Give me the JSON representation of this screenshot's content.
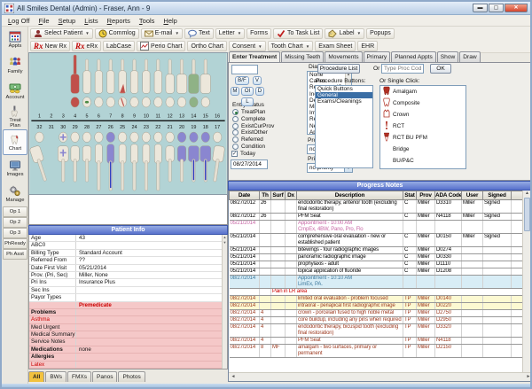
{
  "window": {
    "title": "All Smiles Dental (Admin) - Fraser, Ann - 9",
    "controls": [
      "minimize",
      "maximize",
      "close"
    ]
  },
  "menu": [
    "Log Off",
    "File",
    "Setup",
    "Lists",
    "Reports",
    "Tools",
    "Help"
  ],
  "toolbar_main": [
    {
      "label": "Select Patient",
      "icon": "patient",
      "dropdown": true
    },
    {
      "label": "Commlog",
      "icon": "clock"
    },
    {
      "label": "E-mail",
      "icon": "envelope",
      "dropdown": true
    },
    {
      "label": "Text",
      "icon": "bubble"
    },
    {
      "label": "Letter",
      "dropdown": true
    },
    {
      "label": "Forms"
    },
    {
      "label": "To Task List",
      "icon": "check"
    },
    {
      "label": "Label",
      "icon": "tag",
      "dropdown": true
    },
    {
      "label": "Popups"
    }
  ],
  "toolbar_chart": [
    {
      "label": "New Rx",
      "icon": "rx"
    },
    {
      "label": "eRx",
      "icon": "rx"
    },
    {
      "label": "LabCase"
    },
    {
      "label": "Perio Chart",
      "icon": "perio"
    },
    {
      "label": "Ortho Chart"
    },
    {
      "label": "Consent",
      "dropdown": true
    },
    {
      "label": "Tooth Chart",
      "dropdown": true
    },
    {
      "label": "Exam Sheet"
    },
    {
      "label": "EHR"
    }
  ],
  "sidebar": {
    "modules": [
      {
        "label": "Appts",
        "icon": "appts"
      },
      {
        "label": "Family",
        "icon": "family"
      },
      {
        "label": "Account",
        "icon": "account"
      },
      {
        "label": "Treat Plan",
        "icon": "treat"
      },
      {
        "label": "Chart",
        "icon": "chart",
        "selected": true
      },
      {
        "label": "Images",
        "icon": "images"
      },
      {
        "label": "Manage",
        "icon": "manage"
      }
    ],
    "operatories": [
      "Op 1",
      "Op 2",
      "Op 3",
      "PhReady",
      "Ph Asst"
    ]
  },
  "tooth_chart": {
    "upper_numbers": [
      "1",
      "2",
      "3",
      "4",
      "5",
      "6",
      "7",
      "8",
      "9",
      "10",
      "11",
      "12",
      "13",
      "14",
      "15",
      "16"
    ],
    "lower_numbers": [
      "32",
      "31",
      "30",
      "29",
      "28",
      "27",
      "26",
      "25",
      "24",
      "23",
      "22",
      "21",
      "20",
      "19",
      "18",
      "17"
    ],
    "upper_teeth": {
      "missing": [
        "1",
        "2",
        "3",
        "16"
      ],
      "red": [
        "4"
      ],
      "red_mark": [
        "8"
      ],
      "green": [
        "14"
      ],
      "green_mark": [
        "5"
      ]
    },
    "lower_teeth": {
      "missing": [
        "31"
      ],
      "purple_mark": [
        "30"
      ],
      "purple": [
        "26",
        "20",
        "19",
        "18"
      ],
      "rct": [
        "26",
        "19",
        "18"
      ]
    },
    "colors": {
      "background": "#b2d3d5",
      "tooth": "#ece7db",
      "red": "#c0504a",
      "green": "#8fb286",
      "purple": "#8a86d0",
      "rct_blue": "#2838c0"
    }
  },
  "chart_tabs": {
    "items": [
      "Enter Treatment",
      "Missing Teeth",
      "Movements",
      "Primary",
      "Planned Appts",
      "Show",
      "Draw"
    ],
    "active": "Enter Treatment"
  },
  "enter_treatment": {
    "surface_value": "",
    "surface_buttons": [
      "B/F",
      "V",
      "M",
      "OI",
      "D",
      "L"
    ],
    "entry_status": {
      "label": "Entry Status",
      "options": [
        "TreatPlan",
        "Complete",
        "ExistCurProv",
        "ExistOther",
        "Referred",
        "Condition"
      ],
      "selected": "TreatPlan"
    },
    "today": {
      "label": "Today",
      "checked": true,
      "date": "08/27/2014"
    },
    "diagnosis": {
      "label": "Diagnosis",
      "items": [
        "None",
        "Caries",
        "Recurrent (Car",
        "Incipient (Car",
        "Defect (or mis",
        "Missing (tooth",
        "Irrevers. Pulp.",
        "Revers. Pulp.",
        "Necrotic",
        "Apical Perio"
      ]
    },
    "prognosis": {
      "label": "Prognosis",
      "value": "no prognosis"
    },
    "priority": {
      "label": "Priority",
      "value": "no priority"
    },
    "procedure_list_button": "Procedure List",
    "procedure_buttons": {
      "label": "Procedure Buttons:",
      "items": [
        "Quick Buttons",
        "General",
        "Exams/Cleanings"
      ],
      "selected": "General"
    },
    "or_label": "Or",
    "proc_code_placeholder": "Type Proc Code",
    "ok_button": "OK",
    "single_click": {
      "label": "Or Single Click:",
      "items": [
        {
          "label": "Amalgam",
          "icon": "amalgam"
        },
        {
          "label": "Composite",
          "icon": "composite"
        },
        {
          "label": "Crown",
          "icon": "crown"
        },
        {
          "label": "RCT",
          "icon": "rct"
        },
        {
          "label": "RCT BU PFM",
          "icon": "rctbupfm"
        },
        {
          "label": "Bridge",
          "icon": ""
        },
        {
          "label": "BU/P&C",
          "icon": ""
        }
      ]
    }
  },
  "patient_info": {
    "title": "Patient Info",
    "rows": [
      [
        "Age",
        "43"
      ],
      [
        "ABC0",
        ""
      ],
      [
        "Billing Type",
        "Standard Account"
      ],
      [
        "Referred From",
        "??"
      ],
      [
        "Date First Visit",
        "05/21/2014"
      ],
      [
        "Prov. (Pri, Sec)",
        "Miller, None"
      ],
      [
        "Pri Ins",
        "Insurance Plus"
      ],
      [
        "Sec Ins",
        ""
      ],
      [
        "Payor Types",
        ""
      ]
    ],
    "alerts": [
      {
        "label": "",
        "value": "Premedicate",
        "style": "alert-strong"
      },
      {
        "label": "Problems",
        "value": "",
        "style": "bold"
      },
      {
        "label": "Asthma",
        "value": "",
        "style": "red"
      },
      {
        "label": "Med Urgent",
        "value": ""
      },
      {
        "label": "Medical Summary",
        "value": ""
      },
      {
        "label": "Service Notes",
        "value": ""
      },
      {
        "label": "Medications",
        "value": "none",
        "style": "bold"
      },
      {
        "label": "Allergies",
        "value": "",
        "style": "bold"
      },
      {
        "label": "Latex",
        "value": "",
        "style": "red"
      }
    ]
  },
  "image_tabs": {
    "items": [
      "All",
      "BWs",
      "FMXs",
      "Panos",
      "Photos"
    ],
    "active": "All"
  },
  "progress_notes": {
    "title": "Progress Notes",
    "columns": [
      "Date",
      "Th",
      "Surf",
      "Dx",
      "Description",
      "Stat",
      "Prov",
      "ADA Code",
      "User",
      "Signed"
    ],
    "rows": [
      {
        "date": "08/27/2012",
        "th": "26",
        "desc": "endodontic therapy, anterior tooth (excluding final restoration)",
        "stat": "C",
        "prov": "Miller",
        "ada": "D3310",
        "user": "Miller",
        "signed": "Signed",
        "type": "complete"
      },
      {
        "date": "08/27/2012",
        "th": "26",
        "desc": "PFM Seat",
        "stat": "C",
        "prov": "Miller",
        "ada": "N4118",
        "user": "Miller",
        "signed": "Signed",
        "type": "complete"
      },
      {
        "date": "05/21/2014",
        "desc": "Appointment - 10:00 AM\nCmpEx, 4BW, Pano, Pro, Flo",
        "type": "appt-past"
      },
      {
        "date": "05/21/2014",
        "desc": "comprehensive oral evaluation - new or established patient",
        "stat": "C",
        "prov": "Miller",
        "ada": "D0150",
        "user": "Miller",
        "signed": "Signed",
        "type": "complete"
      },
      {
        "date": "05/21/2014",
        "desc": "bitewings - four radiographic images",
        "stat": "C",
        "prov": "Miller",
        "ada": "D0274",
        "type": "complete"
      },
      {
        "date": "05/21/2014",
        "desc": "panoramic radiographic image",
        "stat": "C",
        "prov": "Miller",
        "ada": "D0330",
        "type": "complete"
      },
      {
        "date": "05/21/2014",
        "desc": "prophylaxis - adult",
        "stat": "C",
        "prov": "Miller",
        "ada": "D1110",
        "type": "complete"
      },
      {
        "date": "05/21/2014",
        "desc": "topical application of fluoride",
        "stat": "C",
        "prov": "Miller",
        "ada": "D1208",
        "type": "complete"
      },
      {
        "date": "08/27/2014",
        "desc": "Appointment - 10:10 AM\nLimEx, PA.",
        "type": "appt-future"
      },
      {
        "note": "Pain in LR area",
        "type": "note"
      },
      {
        "date": "08/27/2014",
        "desc": "limited oral evaluation - problem focused",
        "stat": "TP",
        "prov": "Miller",
        "ada": "D0140",
        "type": "tp-hl"
      },
      {
        "date": "08/27/2014",
        "desc": "intraoral - periapical first radiographic image",
        "stat": "TP",
        "prov": "Miller",
        "ada": "D0220",
        "type": "tp-hl"
      },
      {
        "date": "08/27/2014",
        "th": "4",
        "desc": "crown - porcelain fused to high noble metal",
        "stat": "TP",
        "prov": "Miller",
        "ada": "D2750",
        "type": "tp"
      },
      {
        "date": "08/27/2014",
        "th": "4",
        "desc": "core buildup, including any pins when required",
        "stat": "TP",
        "prov": "Miller",
        "ada": "D2950",
        "type": "tp"
      },
      {
        "date": "08/27/2014",
        "th": "4",
        "desc": "endodontic therapy, bicuspid tooth (excluding final restoration)",
        "stat": "TP",
        "prov": "Miller",
        "ada": "D3320",
        "type": "tp"
      },
      {
        "date": "08/27/2014",
        "th": "4",
        "desc": "PFM Seat",
        "stat": "TP",
        "prov": "Miller",
        "ada": "N4118",
        "type": "tp"
      },
      {
        "date": "08/27/2014",
        "th": "8",
        "surf": "MF",
        "desc": "amalgam - two surfaces, primary or permanent",
        "stat": "TP",
        "prov": "Miller",
        "ada": "D2150",
        "type": "tp"
      }
    ]
  }
}
